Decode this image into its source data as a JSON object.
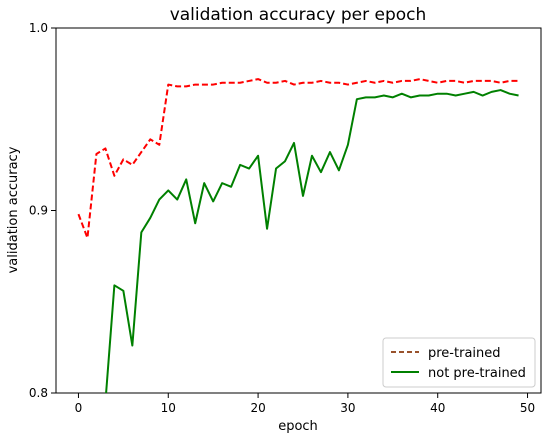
{
  "chart_data": {
    "type": "line",
    "title": "validation accuracy per epoch",
    "xlabel": "epoch",
    "ylabel": "validation accuracy",
    "xlim": [
      -2.5,
      51.5
    ],
    "ylim": [
      0.8,
      1.0
    ],
    "xticks": [
      0,
      10,
      20,
      30,
      40,
      50
    ],
    "xtick_labels": [
      "0",
      "10",
      "20",
      "30",
      "40",
      "50"
    ],
    "yticks": [
      0.8,
      0.9,
      1.0
    ],
    "ytick_labels": [
      "0.8",
      "0.9",
      "1.0"
    ],
    "grid": false,
    "legend": "bottom-right",
    "x": [
      0,
      1,
      2,
      3,
      4,
      5,
      6,
      7,
      8,
      9,
      10,
      11,
      12,
      13,
      14,
      15,
      16,
      17,
      18,
      19,
      20,
      21,
      22,
      23,
      24,
      25,
      26,
      27,
      28,
      29,
      30,
      31,
      32,
      33,
      34,
      35,
      36,
      37,
      38,
      39,
      40,
      41,
      42,
      43,
      44,
      45,
      46,
      47,
      48,
      49
    ],
    "series": [
      {
        "name": "pre-trained",
        "color": "#ff0000",
        "style": "dashed",
        "values": [
          0.898,
          0.885,
          0.931,
          0.934,
          0.919,
          0.928,
          0.925,
          0.932,
          0.939,
          0.936,
          0.969,
          0.968,
          0.968,
          0.969,
          0.969,
          0.969,
          0.97,
          0.97,
          0.97,
          0.971,
          0.972,
          0.97,
          0.97,
          0.971,
          0.969,
          0.97,
          0.97,
          0.971,
          0.97,
          0.97,
          0.969,
          0.97,
          0.971,
          0.97,
          0.971,
          0.97,
          0.971,
          0.971,
          0.972,
          0.971,
          0.97,
          0.971,
          0.971,
          0.97,
          0.971,
          0.971,
          0.971,
          0.97,
          0.971,
          0.971
        ]
      },
      {
        "name": "not pre-trained",
        "color": "#008000",
        "style": "solid",
        "values": [
          null,
          null,
          null,
          0.795,
          0.859,
          0.856,
          0.826,
          0.888,
          0.896,
          0.906,
          0.911,
          0.906,
          0.917,
          0.893,
          0.915,
          0.905,
          0.915,
          0.913,
          0.925,
          0.923,
          0.93,
          0.89,
          0.923,
          0.927,
          0.937,
          0.908,
          0.93,
          0.921,
          0.932,
          0.922,
          0.936,
          0.961,
          0.962,
          0.962,
          0.963,
          0.962,
          0.964,
          0.962,
          0.963,
          0.963,
          0.964,
          0.964,
          0.963,
          0.964,
          0.965,
          0.963,
          0.965,
          0.966,
          0.964,
          0.963
        ]
      }
    ]
  }
}
